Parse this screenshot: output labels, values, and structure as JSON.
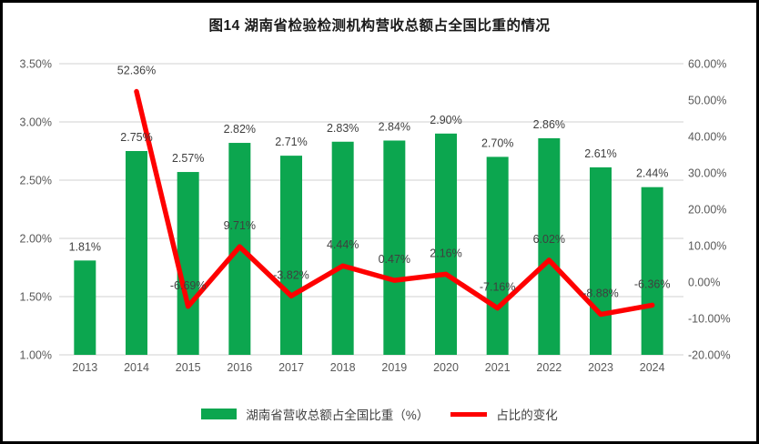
{
  "title": "图14 湖南省检验检测机构营收总额占全国比重的情况",
  "legend": {
    "bar_label": "湖南省营收总额占全国比重（%）",
    "line_label": "占比的变化"
  },
  "colors": {
    "bar": "#0CA64F",
    "line": "#FE0000",
    "gridline": "#D9D9D9",
    "axis_text": "#595959",
    "data_label_text": "#3F3F3F",
    "title_text": "#1A1A1A",
    "frame_border": "#000000"
  },
  "chart_data": {
    "type": "bar",
    "subtype": "bar+line combo, dual axis",
    "title": "图14 湖南省检验检测机构营收总额占全国比重的情况",
    "categories": [
      "2013",
      "2014",
      "2015",
      "2016",
      "2017",
      "2018",
      "2019",
      "2020",
      "2021",
      "2022",
      "2023",
      "2024"
    ],
    "series": [
      {
        "name": "湖南省营收总额占全国比重（%）",
        "type": "bar",
        "axis": "left",
        "values": [
          1.81,
          2.75,
          2.57,
          2.82,
          2.71,
          2.83,
          2.84,
          2.9,
          2.7,
          2.86,
          2.61,
          2.44
        ],
        "labels": [
          "1.81%",
          "2.75%",
          "2.57%",
          "2.82%",
          "2.71%",
          "2.83%",
          "2.84%",
          "2.90%",
          "2.70%",
          "2.86%",
          "2.61%",
          "2.44%"
        ]
      },
      {
        "name": "占比的变化",
        "type": "line",
        "axis": "right",
        "values": [
          null,
          52.36,
          -6.69,
          9.71,
          -3.82,
          4.44,
          0.47,
          2.16,
          -7.16,
          6.02,
          -8.88,
          -6.36
        ],
        "labels": [
          null,
          "52.36%",
          "-6.69%",
          "9.71%",
          "-3.82%",
          "4.44%",
          "0.47%",
          "2.16%",
          "-7.16%",
          "6.02%",
          "-8.88%",
          "-6.36%"
        ]
      }
    ],
    "left_axis": {
      "min": 1.0,
      "max": 3.5,
      "tick_labels": [
        "3.50%",
        "3.00%",
        "2.50%",
        "2.00%",
        "1.50%",
        "1.00%"
      ]
    },
    "right_axis": {
      "min": -20,
      "max": 60,
      "tick_labels": [
        "60.00%",
        "50.00%",
        "40.00%",
        "30.00%",
        "20.00%",
        "10.00%",
        "0.00%",
        "-10.00%",
        "-20.00%"
      ]
    },
    "grid": true,
    "legend_position": "bottom"
  }
}
